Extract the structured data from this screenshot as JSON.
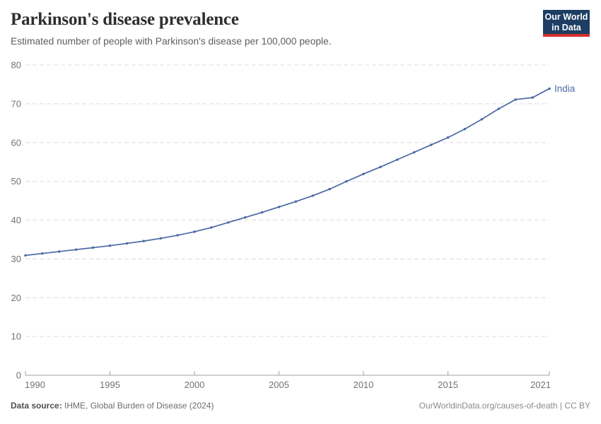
{
  "header": {
    "title": "Parkinson's disease prevalence",
    "subtitle": "Estimated number of people with Parkinson's disease per 100,000 people."
  },
  "logo": {
    "line1": "Our World",
    "line2": "in Data",
    "bg_color": "#1d3d63",
    "accent_color": "#cf302b"
  },
  "chart_data": {
    "type": "line",
    "title": "Parkinson's disease prevalence",
    "subtitle": "Estimated number of people with Parkinson's disease per 100,000 people.",
    "x": [
      1990,
      1991,
      1992,
      1993,
      1994,
      1995,
      1996,
      1997,
      1998,
      1999,
      2000,
      2001,
      2002,
      2003,
      2004,
      2005,
      2006,
      2007,
      2008,
      2009,
      2010,
      2011,
      2012,
      2013,
      2014,
      2015,
      2016,
      2017,
      2018,
      2019,
      2020,
      2021
    ],
    "series": [
      {
        "name": "India",
        "color": "#4a67a3",
        "label_color": "#4c6ca6",
        "values": [
          30.9,
          31.4,
          31.9,
          32.4,
          32.9,
          33.4,
          34.0,
          34.6,
          35.3,
          36.1,
          37.0,
          38.1,
          39.4,
          40.7,
          42.0,
          43.4,
          44.8,
          46.3,
          48.0,
          50.0,
          51.9,
          53.7,
          55.6,
          57.5,
          59.4,
          61.3,
          63.5,
          66.0,
          68.7,
          71.1,
          71.6,
          73.9
        ]
      }
    ],
    "xlim": [
      1990,
      2021
    ],
    "ylim": [
      0,
      80
    ],
    "xticks": [
      1990,
      1995,
      2000,
      2005,
      2010,
      2015,
      2021
    ],
    "yticks": [
      0,
      10,
      20,
      30,
      40,
      50,
      60,
      70,
      80
    ],
    "xlabel": "",
    "ylabel": "",
    "grid": "horizontal-dashed",
    "gridline_color": "#dcdcdc",
    "axis_color": "#a3a3a3",
    "legend_position": "end-of-line"
  },
  "footer": {
    "source_label": "Data source:",
    "source_text": " IHME, Global Burden of Disease (2024)",
    "credit": "OurWorldinData.org/causes-of-death | CC BY"
  }
}
